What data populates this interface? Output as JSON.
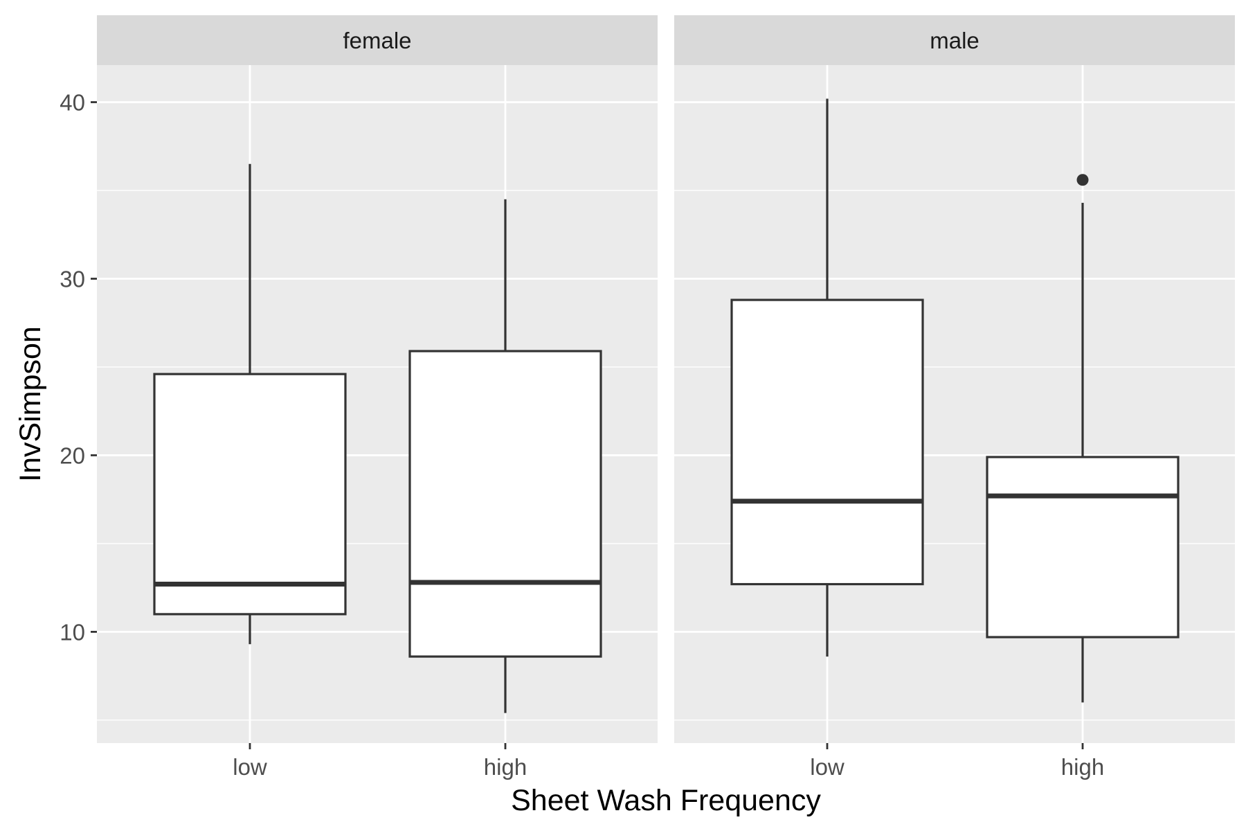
{
  "chart_data": {
    "type": "boxplot",
    "xlabel": "Sheet Wash Frequency",
    "ylabel": "InvSimpson",
    "ylim": [
      3.7,
      42.1
    ],
    "y_ticks": [
      10,
      20,
      30,
      40
    ],
    "y_tick_labels": [
      "10",
      "20",
      "30",
      "40"
    ],
    "categories": [
      "low",
      "high"
    ],
    "grid": true,
    "facets": [
      {
        "label": "female",
        "boxes": [
          {
            "category": "low",
            "min": 9.3,
            "q1": 11.0,
            "median": 12.7,
            "q3": 24.6,
            "max": 36.5,
            "outliers": []
          },
          {
            "category": "high",
            "min": 5.4,
            "q1": 8.6,
            "median": 12.8,
            "q3": 25.9,
            "max": 34.5,
            "outliers": []
          }
        ]
      },
      {
        "label": "male",
        "boxes": [
          {
            "category": "low",
            "min": 8.6,
            "q1": 12.7,
            "median": 17.4,
            "q3": 28.8,
            "max": 40.2,
            "outliers": []
          },
          {
            "category": "high",
            "min": 6.0,
            "q1": 9.7,
            "median": 17.7,
            "q3": 19.9,
            "max": 34.3,
            "outliers": [
              35.6
            ]
          }
        ]
      }
    ]
  }
}
